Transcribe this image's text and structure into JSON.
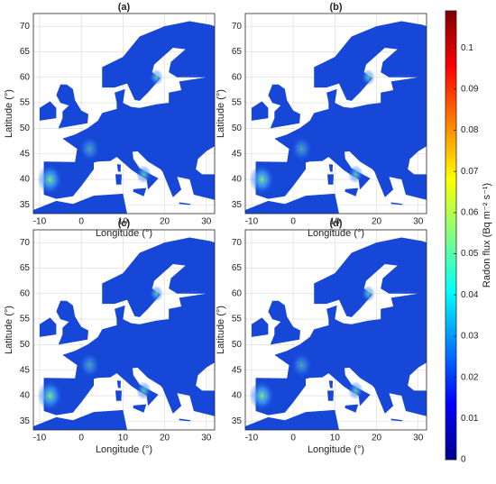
{
  "panels": [
    {
      "label": "(a)",
      "xlabel": "Longitude (°)",
      "ylabel": "Latitude (°)"
    },
    {
      "label": "(b)",
      "xlabel": "Longitude (°)",
      "ylabel": "Latitude (°)"
    },
    {
      "label": "(c)",
      "xlabel": "Longitude (°)",
      "ylabel": "Latitude (°)"
    },
    {
      "label": "(d)",
      "xlabel": "Longitude (°)",
      "ylabel": "Latitude (°)"
    }
  ],
  "xlim": [
    -11.5,
    32
  ],
  "xticks": [
    -10,
    0,
    10,
    20,
    30
  ],
  "ylim": [
    33.3,
    72.5
  ],
  "yticks": [
    35,
    40,
    45,
    50,
    55,
    60,
    65,
    70
  ],
  "colorbar": {
    "label": "Radon flux (Bq m⁻² s⁻¹)",
    "lim": [
      0,
      0.109
    ],
    "ticks": [
      0,
      0.01,
      0.02,
      0.03,
      0.04,
      0.05,
      0.06,
      0.07,
      0.08,
      0.09,
      0.1
    ]
  }
}
